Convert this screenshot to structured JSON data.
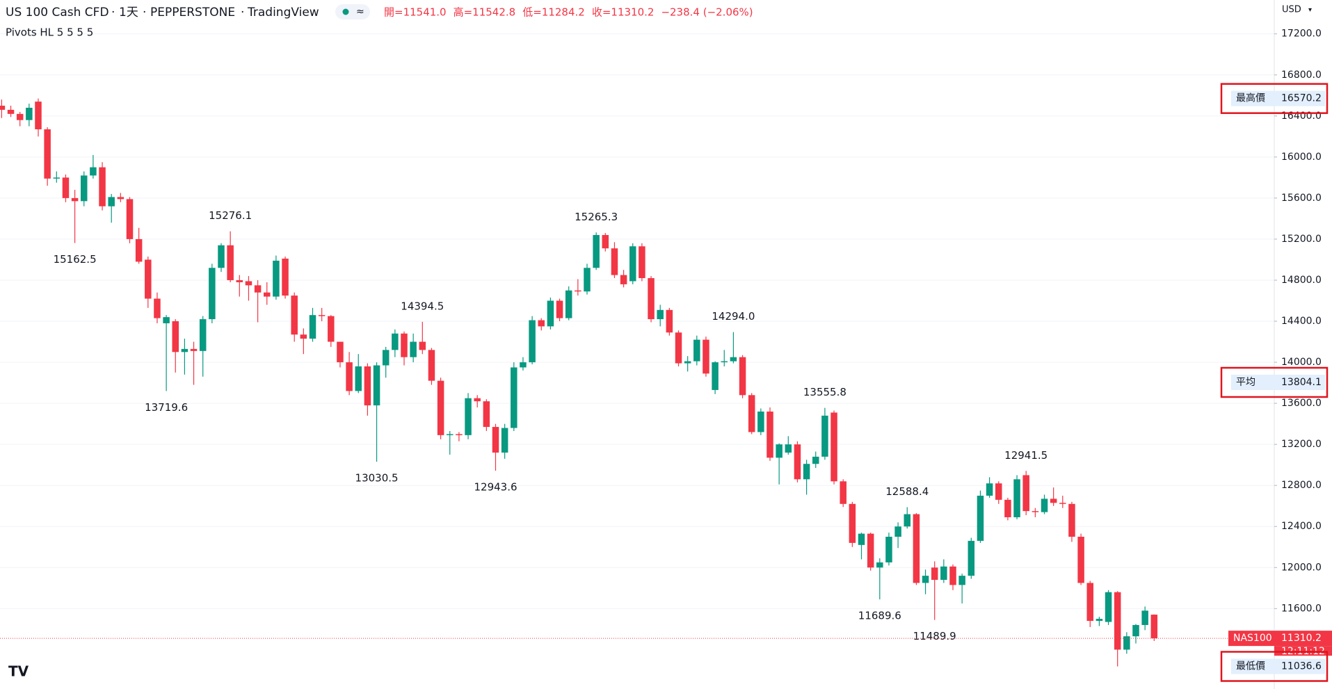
{
  "header": {
    "symbol": "US 100 Cash CFD",
    "interval": "1天",
    "broker": "PEPPERSTONE",
    "platform": "TradingView",
    "currency": "USD",
    "ohlc": [
      "開=11541.0",
      "高=11542.8",
      "低=11284.2",
      "收=11310.2",
      "−238.4 (−2.06%)"
    ],
    "indicator": "Pivots HL 5 5 5 5"
  },
  "chart_data": {
    "type": "candlestick",
    "up_color": "#089981",
    "down_color": "#f23645",
    "grid": true,
    "ylim": [
      10830,
      17530
    ],
    "yticks": [
      {
        "value": 11600,
        "label": "11600.0"
      },
      {
        "value": 12000,
        "label": "12000.0"
      },
      {
        "value": 12400,
        "label": "12400.0"
      },
      {
        "value": 12800,
        "label": "12800.0"
      },
      {
        "value": 13200,
        "label": "13200.0"
      },
      {
        "value": 13600,
        "label": "13600.0"
      },
      {
        "value": 14000,
        "label": "14000.0"
      },
      {
        "value": 14400,
        "label": "14400.0"
      },
      {
        "value": 14800,
        "label": "14800.0"
      },
      {
        "value": 15200,
        "label": "15200.0"
      },
      {
        "value": 15600,
        "label": "15600.0"
      },
      {
        "value": 16000,
        "label": "16000.0"
      },
      {
        "value": 16400,
        "label": "16400.0"
      },
      {
        "value": 16800,
        "label": "16800.0"
      },
      {
        "value": 17200,
        "label": "17200.0"
      }
    ],
    "ohlc": [
      [
        16500,
        16560,
        16380,
        16460
      ],
      [
        16460,
        16500,
        16390,
        16420
      ],
      [
        16420,
        16440,
        16300,
        16360
      ],
      [
        16360,
        16520,
        16300,
        16480
      ],
      [
        16540,
        16570,
        16200,
        16270
      ],
      [
        16270,
        16290,
        15720,
        15790
      ],
      [
        15790,
        15860,
        15750,
        15800
      ],
      [
        15800,
        15830,
        15560,
        15600
      ],
      [
        15600,
        15680,
        15162.5,
        15570
      ],
      [
        15570,
        15860,
        15520,
        15820
      ],
      [
        15820,
        16020,
        15790,
        15900
      ],
      [
        15900,
        15950,
        15480,
        15520
      ],
      [
        15520,
        15640,
        15360,
        15610
      ],
      [
        15610,
        15650,
        15560,
        15590
      ],
      [
        15590,
        15610,
        15160,
        15200
      ],
      [
        15200,
        15310,
        14960,
        14980
      ],
      [
        15000,
        15030,
        14530,
        14620
      ],
      [
        14620,
        14680,
        14380,
        14430
      ],
      [
        14380,
        14460,
        13719.6,
        14440
      ],
      [
        14400,
        14420,
        13900,
        14100
      ],
      [
        14100,
        14230,
        13880,
        14130
      ],
      [
        14130,
        14200,
        13780,
        14110
      ],
      [
        14110,
        14450,
        13860,
        14420
      ],
      [
        14420,
        14960,
        14380,
        14920
      ],
      [
        14920,
        15160,
        14880,
        15140
      ],
      [
        15140,
        15276.1,
        14780,
        14800
      ],
      [
        14800,
        14850,
        14640,
        14780
      ],
      [
        14790,
        14840,
        14600,
        14750
      ],
      [
        14750,
        14800,
        14390,
        14680
      ],
      [
        14680,
        14780,
        14560,
        14640
      ],
      [
        14640,
        15040,
        14610,
        14990
      ],
      [
        15010,
        15030,
        14620,
        14650
      ],
      [
        14650,
        14680,
        14200,
        14270
      ],
      [
        14270,
        14330,
        14080,
        14230
      ],
      [
        14230,
        14530,
        14200,
        14460
      ],
      [
        14460,
        14530,
        14400,
        14450
      ],
      [
        14450,
        14460,
        14150,
        14200
      ],
      [
        14200,
        14200,
        13950,
        14000
      ],
      [
        14000,
        14100,
        13680,
        13720
      ],
      [
        13720,
        14080,
        13700,
        13960
      ],
      [
        13960,
        13990,
        13480,
        13580
      ],
      [
        13580,
        14000,
        13030.5,
        13970
      ],
      [
        13970,
        14150,
        13850,
        14120
      ],
      [
        14120,
        14320,
        14050,
        14280
      ],
      [
        14280,
        14300,
        13970,
        14050
      ],
      [
        14050,
        14280,
        14000,
        14200
      ],
      [
        14200,
        14394.5,
        14080,
        14120
      ],
      [
        14120,
        14140,
        13780,
        13820
      ],
      [
        13820,
        13850,
        13250,
        13290
      ],
      [
        13290,
        13330,
        13100,
        13300
      ],
      [
        13300,
        13320,
        13230,
        13290
      ],
      [
        13290,
        13700,
        13250,
        13650
      ],
      [
        13650,
        13680,
        13560,
        13620
      ],
      [
        13620,
        13640,
        13330,
        13370
      ],
      [
        13370,
        13400,
        12943.6,
        13120
      ],
      [
        13120,
        13400,
        13060,
        13360
      ],
      [
        13360,
        14000,
        13330,
        13950
      ],
      [
        13950,
        14050,
        13920,
        14000
      ],
      [
        14000,
        14450,
        13980,
        14410
      ],
      [
        14410,
        14430,
        14310,
        14350
      ],
      [
        14350,
        14630,
        14320,
        14600
      ],
      [
        14600,
        14620,
        14400,
        14430
      ],
      [
        14430,
        14740,
        14410,
        14700
      ],
      [
        14700,
        14810,
        14650,
        14690
      ],
      [
        14690,
        14960,
        14660,
        14920
      ],
      [
        14920,
        15265.3,
        14900,
        15240
      ],
      [
        15240,
        15260,
        15080,
        15110
      ],
      [
        15110,
        15170,
        14820,
        14850
      ],
      [
        14850,
        14900,
        14730,
        14760
      ],
      [
        14790,
        15160,
        14760,
        15130
      ],
      [
        15130,
        15160,
        14790,
        14820
      ],
      [
        14820,
        14840,
        14390,
        14420
      ],
      [
        14420,
        14560,
        14350,
        14510
      ],
      [
        14510,
        14530,
        14260,
        14290
      ],
      [
        14290,
        14310,
        13960,
        13990
      ],
      [
        13990,
        14060,
        13910,
        14010
      ],
      [
        14010,
        14260,
        13970,
        14220
      ],
      [
        14220,
        14250,
        13860,
        13890
      ],
      [
        13730,
        14010,
        13690,
        14000
      ],
      [
        14000,
        14120,
        13960,
        14010
      ],
      [
        14010,
        14294.0,
        13990,
        14050
      ],
      [
        14050,
        14070,
        13650,
        13680
      ],
      [
        13680,
        13700,
        13300,
        13320
      ],
      [
        13320,
        13550,
        13290,
        13520
      ],
      [
        13520,
        13560,
        13040,
        13070
      ],
      [
        13070,
        13210,
        12810,
        13200
      ],
      [
        13120,
        13280,
        13100,
        13200
      ],
      [
        13200,
        13230,
        12830,
        12860
      ],
      [
        12860,
        13050,
        12710,
        13010
      ],
      [
        13010,
        13130,
        12970,
        13080
      ],
      [
        13080,
        13555.8,
        13050,
        13480
      ],
      [
        13510,
        13530,
        12810,
        12840
      ],
      [
        12840,
        12860,
        12590,
        12620
      ],
      [
        12620,
        12640,
        12200,
        12240
      ],
      [
        12220,
        12340,
        12080,
        12330
      ],
      [
        12330,
        12340,
        11970,
        12000
      ],
      [
        12000,
        12090,
        11689.6,
        12050
      ],
      [
        12050,
        12340,
        12020,
        12300
      ],
      [
        12300,
        12440,
        12190,
        12400
      ],
      [
        12400,
        12588.4,
        12380,
        12520
      ],
      [
        12520,
        12530,
        11830,
        11850
      ],
      [
        11850,
        11980,
        11740,
        11920
      ],
      [
        12000,
        12060,
        11489.9,
        11880
      ],
      [
        11880,
        12080,
        11850,
        12010
      ],
      [
        12010,
        12030,
        11780,
        11830
      ],
      [
        11830,
        11940,
        11650,
        11920
      ],
      [
        11920,
        12290,
        11890,
        12260
      ],
      [
        12260,
        12750,
        12240,
        12700
      ],
      [
        12700,
        12880,
        12680,
        12820
      ],
      [
        12820,
        12840,
        12620,
        12660
      ],
      [
        12660,
        12680,
        12460,
        12490
      ],
      [
        12490,
        12900,
        12470,
        12860
      ],
      [
        12900,
        12941.5,
        12510,
        12550
      ],
      [
        12550,
        12580,
        12490,
        12540
      ],
      [
        12540,
        12710,
        12520,
        12670
      ],
      [
        12670,
        12780,
        12600,
        12630
      ],
      [
        12630,
        12700,
        12580,
        12620
      ],
      [
        12620,
        12640,
        12250,
        12300
      ],
      [
        12300,
        12330,
        11830,
        11850
      ],
      [
        11850,
        11870,
        11420,
        11480
      ],
      [
        11480,
        11520,
        11430,
        11500
      ],
      [
        11470,
        11780,
        11440,
        11760
      ],
      [
        11760,
        11770,
        11036.6,
        11200
      ],
      [
        11200,
        11370,
        11160,
        11330
      ],
      [
        11330,
        11450,
        11260,
        11440
      ],
      [
        11440,
        11620,
        11390,
        11580
      ],
      [
        11541.0,
        11542.8,
        11284.2,
        11310.2
      ]
    ],
    "pivots": {
      "values": [
        15162.5,
        15276.1,
        13719.6,
        14394.5,
        13030.5,
        12943.6,
        15265.3,
        14294.0,
        13555.8,
        12588.4,
        11689.6,
        11489.9,
        12941.5
      ],
      "value_labels": [
        "15162.5",
        "15276.1",
        "13719.6",
        "14394.5",
        "13030.5",
        "12943.6",
        "15265.3",
        "14294.0",
        "13555.8",
        "12588.4",
        "11689.6",
        "11489.9",
        "12941.5"
      ]
    },
    "price_labels": [
      {
        "label": "最高價",
        "value": 16570.2
      },
      {
        "label": "平均",
        "value": 13804.1
      },
      {
        "label": "最低價",
        "value": 11036.6
      }
    ],
    "last_price": {
      "label": "NAS100",
      "value": 11310.2,
      "countdown": "12:11:12"
    }
  }
}
